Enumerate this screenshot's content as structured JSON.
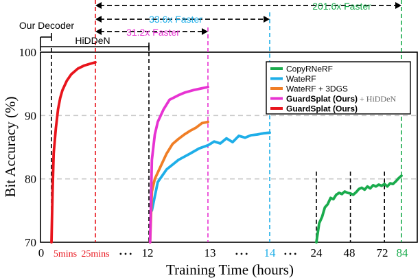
{
  "chart_data": {
    "type": "line",
    "title": "",
    "xlabel": "Training Time (hours)",
    "ylabel": "Bit Accuracy (%)",
    "ylim": [
      70,
      100
    ],
    "y_ticks": [
      "70",
      "80",
      "90",
      "100"
    ],
    "grid": "horizontal dashed",
    "legend_position": "top-right",
    "x_axis_note": "broken axis with segments 0–25mins, 12–13, 13–14, 24–84",
    "x_ticks": [
      {
        "label": "0",
        "color": "#000000"
      },
      {
        "label": "5mins",
        "color": "#e8141c"
      },
      {
        "label": "25mins",
        "color": "#e8141c"
      },
      {
        "label": "• • •",
        "color": "#000000"
      },
      {
        "label": "12",
        "color": "#000000"
      },
      {
        "label": "13",
        "color": "#000000"
      },
      {
        "label": "• • •",
        "color": "#000000"
      },
      {
        "label": "14",
        "color": "#1eaee8"
      },
      {
        "label": "• • •",
        "color": "#000000"
      },
      {
        "label": "24",
        "color": "#000000"
      },
      {
        "label": "48",
        "color": "#000000"
      },
      {
        "label": "72",
        "color": "#000000"
      },
      {
        "label": "84",
        "color": "#1aab4d"
      }
    ],
    "series": [
      {
        "name": "CopyRNeRF",
        "color": "#1aab4d",
        "points": [
          [
            24,
            70
          ],
          [
            26,
            73
          ],
          [
            28,
            74
          ],
          [
            30,
            75.5
          ],
          [
            32,
            76
          ],
          [
            34,
            77
          ],
          [
            36,
            76.8
          ],
          [
            38,
            77.5
          ],
          [
            40,
            77.8
          ],
          [
            42,
            77.6
          ],
          [
            44,
            78
          ],
          [
            46,
            77.8
          ],
          [
            48,
            77.7
          ],
          [
            50,
            77.5
          ],
          [
            52,
            77.9
          ],
          [
            54,
            78.4
          ],
          [
            56,
            78.6
          ],
          [
            58,
            78.3
          ],
          [
            60,
            78.8
          ],
          [
            62,
            78.5
          ],
          [
            64,
            79
          ],
          [
            66,
            78.8
          ],
          [
            68,
            79.1
          ],
          [
            70,
            78.9
          ],
          [
            72,
            79.2
          ],
          [
            74,
            78.8
          ],
          [
            76,
            79.3
          ],
          [
            78,
            79.2
          ],
          [
            80,
            79.6
          ],
          [
            82,
            80.1
          ],
          [
            84,
            80.5
          ]
        ]
      },
      {
        "name": "WateRF",
        "color": "#1eaee8",
        "points": [
          [
            12.05,
            75
          ],
          [
            12.15,
            79.5
          ],
          [
            12.3,
            81.5
          ],
          [
            12.5,
            83
          ],
          [
            12.7,
            84
          ],
          [
            12.85,
            84.8
          ],
          [
            13,
            85.3
          ],
          [
            13.1,
            85.9
          ],
          [
            13.2,
            85.6
          ],
          [
            13.3,
            86.4
          ],
          [
            13.4,
            85.8
          ],
          [
            13.5,
            86.8
          ],
          [
            13.6,
            86.5
          ],
          [
            13.7,
            86.9
          ],
          [
            13.8,
            87
          ],
          [
            13.9,
            87.2
          ],
          [
            14,
            87.3
          ]
        ]
      },
      {
        "name": "WateRF + 3DGS",
        "color": "#f07e26",
        "points": [
          [
            12.02,
            70
          ],
          [
            12.05,
            78
          ],
          [
            12.1,
            80
          ],
          [
            12.2,
            82
          ],
          [
            12.3,
            84
          ],
          [
            12.4,
            85.5
          ],
          [
            12.5,
            86.3
          ],
          [
            12.6,
            87
          ],
          [
            12.7,
            87.6
          ],
          [
            12.8,
            88.1
          ],
          [
            12.9,
            88.8
          ],
          [
            13,
            89
          ]
        ]
      },
      {
        "name": "GuardSplat (Ours) + HiDDeN",
        "color": "#e733d2",
        "points": [
          [
            12.02,
            70
          ],
          [
            12.05,
            83
          ],
          [
            12.1,
            87
          ],
          [
            12.15,
            89
          ],
          [
            12.25,
            91
          ],
          [
            12.35,
            92.5
          ],
          [
            12.5,
            93.2
          ],
          [
            12.6,
            93.6
          ],
          [
            12.75,
            94
          ],
          [
            12.9,
            94.3
          ],
          [
            13,
            94.5
          ]
        ]
      },
      {
        "name": "GuardSplat (Ours)",
        "color": "#e8141c",
        "points": [
          [
            5,
            70
          ],
          [
            5.5,
            78
          ],
          [
            6,
            84
          ],
          [
            7,
            88
          ],
          [
            8,
            91
          ],
          [
            9,
            92.8
          ],
          [
            10,
            94
          ],
          [
            12,
            95.5
          ],
          [
            14,
            96.5
          ],
          [
            17,
            97.4
          ],
          [
            20,
            97.9
          ],
          [
            23,
            98.2
          ],
          [
            25,
            98.4
          ]
        ]
      }
    ],
    "legend": [
      {
        "name": "CopyRNeRF",
        "bold": false,
        "suffix": ""
      },
      {
        "name": "WateRF",
        "bold": false,
        "suffix": ""
      },
      {
        "name": "WateRF + 3DGS",
        "bold": false,
        "suffix": ""
      },
      {
        "name": "GuardSplat (Ours)",
        "bold": true,
        "suffix": " + HiDDeN"
      },
      {
        "name": "GuardSplat (Ours)",
        "bold": true,
        "suffix": ""
      }
    ],
    "annotations": [
      {
        "text": "201.6x Faster",
        "color": "#1aab4d"
      },
      {
        "text": "33.6x Faster",
        "color": "#1eaee8"
      },
      {
        "text": "31.2x Faster",
        "color": "#e733d2"
      },
      {
        "text": "Our Decoder",
        "color": "#000000"
      },
      {
        "text": "HiDDeN",
        "color": "#000000"
      }
    ]
  }
}
